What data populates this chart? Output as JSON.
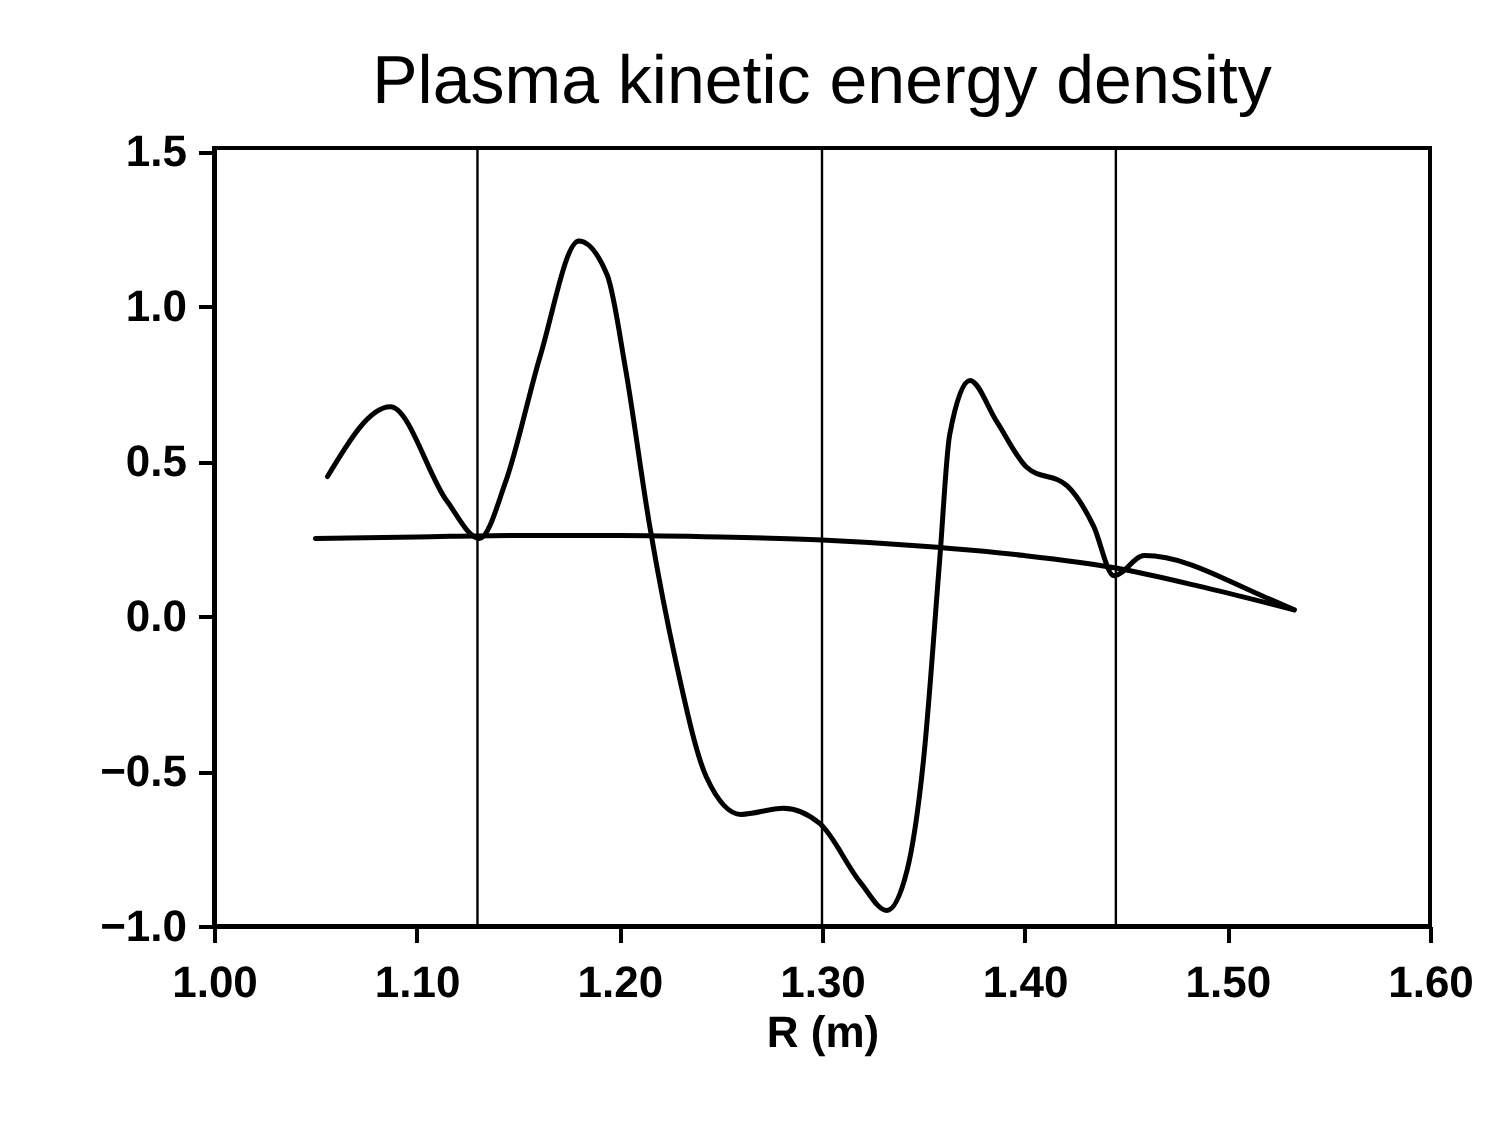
{
  "chart_data": {
    "type": "line",
    "title": "Plasma kinetic energy density",
    "xlabel": "R (m)",
    "xlim": [
      1.0,
      1.6
    ],
    "xticks": [
      {
        "value": 1.0,
        "label": "1.00"
      },
      {
        "value": 1.1,
        "label": "1.10"
      },
      {
        "value": 1.2,
        "label": "1.20"
      },
      {
        "value": 1.3,
        "label": "1.30"
      },
      {
        "value": 1.4,
        "label": "1.40"
      },
      {
        "value": 1.5,
        "label": "1.50"
      },
      {
        "value": 1.6,
        "label": "1.60"
      }
    ],
    "ylim": [
      -1.0,
      1.51
    ],
    "yticks": [
      {
        "value": -1.0,
        "label": "−1.0"
      },
      {
        "value": -0.5,
        "label": "−0.5"
      },
      {
        "value": 0,
        "label": "0.0"
      },
      {
        "value": 0.5,
        "label": "0.5"
      },
      {
        "value": 1.0,
        "label": "1.0"
      },
      {
        "value": 1.5,
        "label": "1.5"
      }
    ],
    "grid": false,
    "marker": "none",
    "line_style": "solid",
    "series": [
      {
        "color": "#000000",
        "x": [
          1.056,
          1.087,
          1.115,
          1.131,
          1.144,
          1.161,
          1.18,
          1.194,
          1.203,
          1.215,
          1.228,
          1.243,
          1.26,
          1.281,
          1.299,
          1.319,
          1.332,
          1.342,
          1.35,
          1.358,
          1.363,
          1.373,
          1.386,
          1.401,
          1.421,
          1.434,
          1.444,
          1.459,
          1.519,
          1.533
        ],
        "values": [
          0.45,
          0.675,
          0.37,
          0.25,
          0.435,
          0.84,
          1.21,
          1.1,
          0.8,
          0.29,
          -0.15,
          -0.52,
          -0.64,
          -0.62,
          -0.67,
          -0.86,
          -0.95,
          -0.82,
          -0.47,
          0.175,
          0.585,
          0.76,
          0.63,
          0.48,
          0.42,
          0.29,
          0.13,
          0.195,
          0.06,
          0.02
        ]
      },
      {
        "color": "#000000",
        "x": [
          1.05,
          1.1,
          1.15,
          1.2,
          1.25,
          1.3,
          1.35,
          1.4,
          1.445,
          1.49,
          1.533
        ],
        "values": [
          0.25,
          0.255,
          0.26,
          0.26,
          0.255,
          0.245,
          0.225,
          0.195,
          0.155,
          0.09,
          0.02
        ]
      }
    ],
    "ref_lines": [
      {
        "axis": "x",
        "value": 1.13,
        "color": "#000000"
      },
      {
        "axis": "x",
        "value": 1.3,
        "color": "#000000"
      },
      {
        "axis": "x",
        "value": 1.445,
        "color": "#000000"
      }
    ]
  }
}
